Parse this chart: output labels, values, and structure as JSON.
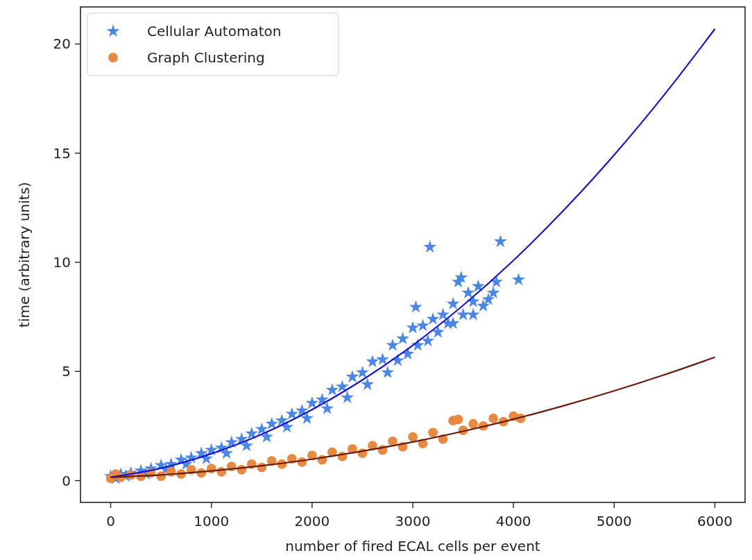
{
  "chart_data": {
    "type": "scatter",
    "xlabel": "number of fired ECAL cells per event",
    "ylabel": "time (arbitrary units)",
    "xlim": [
      -300,
      6300
    ],
    "ylim": [
      -1.0,
      21.7
    ],
    "xticks": [
      0,
      1000,
      2000,
      3000,
      4000,
      5000,
      6000
    ],
    "yticks": [
      0,
      5,
      10,
      15,
      20
    ],
    "grid": false,
    "legend": "top left",
    "series": [
      {
        "name": "Cellular Automaton",
        "marker": "star",
        "color": "#4a86e8",
        "x": [
          0,
          50,
          100,
          150,
          200,
          300,
          350,
          400,
          500,
          550,
          600,
          700,
          750,
          800,
          900,
          950,
          1000,
          1100,
          1150,
          1200,
          1300,
          1350,
          1400,
          1500,
          1550,
          1600,
          1700,
          1750,
          1800,
          1900,
          1950,
          2000,
          2100,
          2150,
          2200,
          2300,
          2350,
          2400,
          2500,
          2550,
          2600,
          2700,
          2750,
          2800,
          2850,
          2900,
          2950,
          3000,
          3030,
          3050,
          3100,
          3150,
          3170,
          3200,
          3250,
          3300,
          3350,
          3400,
          3400,
          3450,
          3480,
          3500,
          3550,
          3600,
          3600,
          3650,
          3700,
          3750,
          3800,
          3830,
          3870,
          4050
        ],
        "values": [
          0.2,
          0.1,
          0.3,
          0.2,
          0.35,
          0.45,
          0.3,
          0.55,
          0.7,
          0.5,
          0.75,
          0.95,
          0.75,
          1.05,
          1.25,
          1.0,
          1.4,
          1.5,
          1.25,
          1.75,
          1.9,
          1.6,
          2.15,
          2.35,
          2.0,
          2.6,
          2.75,
          2.45,
          3.05,
          3.2,
          2.85,
          3.55,
          3.7,
          3.3,
          4.15,
          4.3,
          3.8,
          4.75,
          4.95,
          4.4,
          5.45,
          5.55,
          4.95,
          6.2,
          5.5,
          6.5,
          5.8,
          7.0,
          7.95,
          6.2,
          7.1,
          6.4,
          10.7,
          7.4,
          6.8,
          7.6,
          7.2,
          8.1,
          7.2,
          9.1,
          9.3,
          7.6,
          8.6,
          8.2,
          7.6,
          8.9,
          8.0,
          8.3,
          8.6,
          9.1,
          10.95,
          9.2
        ]
      },
      {
        "name": "Graph Clustering",
        "marker": "circle",
        "color": "#e8893f",
        "x": [
          0,
          50,
          100,
          200,
          300,
          400,
          500,
          600,
          700,
          800,
          900,
          1000,
          1100,
          1200,
          1300,
          1400,
          1500,
          1600,
          1700,
          1800,
          1900,
          2000,
          2100,
          2200,
          2300,
          2400,
          2500,
          2600,
          2700,
          2800,
          2900,
          3000,
          3100,
          3200,
          3300,
          3400,
          3450,
          3500,
          3600,
          3700,
          3800,
          3900,
          4000,
          4070
        ],
        "values": [
          0.1,
          0.3,
          0.15,
          0.25,
          0.2,
          0.35,
          0.2,
          0.4,
          0.3,
          0.5,
          0.35,
          0.55,
          0.4,
          0.65,
          0.5,
          0.75,
          0.6,
          0.9,
          0.75,
          1.0,
          0.85,
          1.15,
          0.95,
          1.3,
          1.1,
          1.45,
          1.25,
          1.6,
          1.4,
          1.8,
          1.55,
          2.0,
          1.7,
          2.2,
          1.9,
          2.75,
          2.8,
          2.3,
          2.6,
          2.5,
          2.85,
          2.7,
          2.95,
          2.85
        ]
      },
      {
        "type": "line",
        "marker": "none",
        "color": "#1414d8",
        "x": [
          0,
          500,
          1000,
          1500,
          2000,
          2500,
          3000,
          3500,
          4000,
          4500,
          5000,
          5500,
          6000
        ],
        "values": [
          0.15,
          0.57,
          1.23,
          2.12,
          3.25,
          4.61,
          6.2,
          8.03,
          10.09,
          12.39,
          14.92,
          17.69,
          20.69
        ]
      },
      {
        "type": "line",
        "marker": "none",
        "color": "#6b1a10",
        "x": [
          0,
          500,
          1000,
          1500,
          2000,
          2500,
          3000,
          3500,
          4000,
          4500,
          5000,
          5500,
          6000
        ],
        "values": [
          0.15,
          0.26,
          0.44,
          0.68,
          0.98,
          1.35,
          1.77,
          2.26,
          2.81,
          3.43,
          4.11,
          4.85,
          5.65
        ]
      }
    ]
  }
}
